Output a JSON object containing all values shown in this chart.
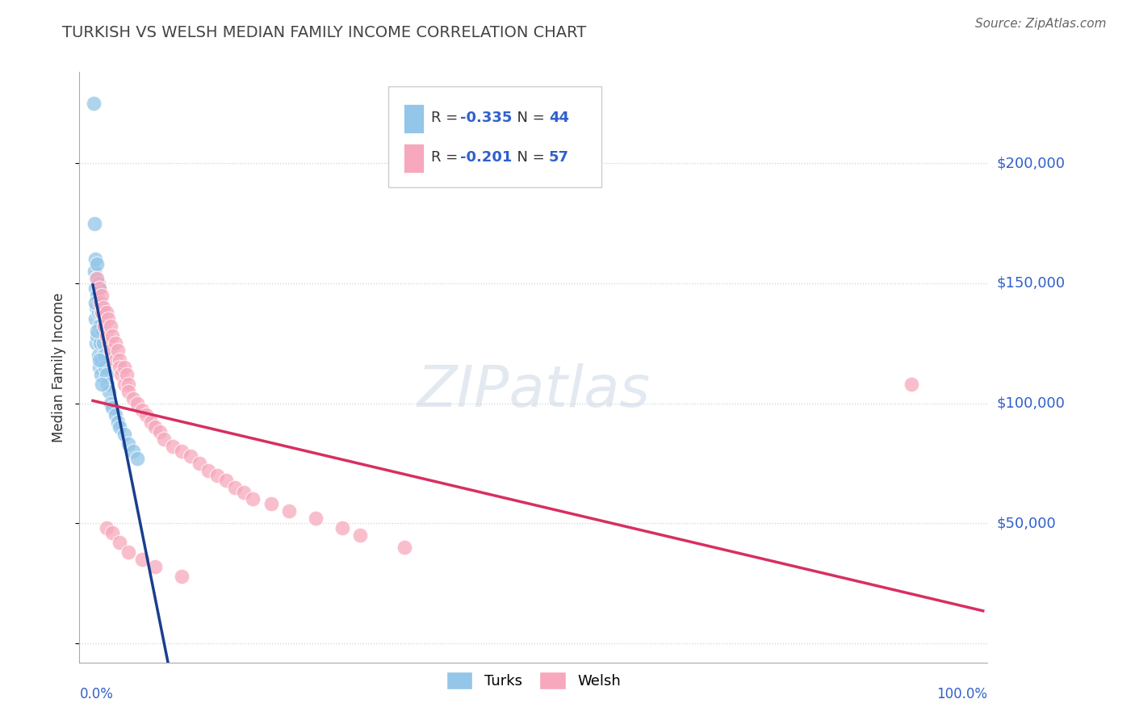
{
  "title": "TURKISH VS WELSH MEDIAN FAMILY INCOME CORRELATION CHART",
  "source": "Source: ZipAtlas.com",
  "ylabel": "Median Family Income",
  "turks_R": "-0.335",
  "turks_N": "44",
  "welsh_R": "-0.201",
  "welsh_N": "57",
  "blue_scatter_color": "#93c6e8",
  "pink_scatter_color": "#f7a8bc",
  "blue_line_color": "#1a3e8f",
  "pink_line_color": "#d63060",
  "dashed_line_color": "#b0bfd0",
  "axis_label_color": "#3060cc",
  "title_color": "#444444",
  "grid_color": "#c8d4e0",
  "watermark_color": "#ccd8e4",
  "turks_x": [
    0.001,
    0.002,
    0.002,
    0.003,
    0.003,
    0.003,
    0.004,
    0.004,
    0.004,
    0.005,
    0.005,
    0.005,
    0.006,
    0.006,
    0.006,
    0.007,
    0.007,
    0.007,
    0.008,
    0.008,
    0.009,
    0.009,
    0.01,
    0.01,
    0.011,
    0.012,
    0.013,
    0.014,
    0.015,
    0.016,
    0.018,
    0.02,
    0.022,
    0.025,
    0.028,
    0.03,
    0.035,
    0.04,
    0.045,
    0.05,
    0.003,
    0.005,
    0.007,
    0.01
  ],
  "turks_y": [
    225000,
    175000,
    155000,
    160000,
    148000,
    135000,
    152000,
    140000,
    125000,
    158000,
    145000,
    128000,
    150000,
    138000,
    120000,
    148000,
    132000,
    115000,
    142000,
    125000,
    138000,
    112000,
    140000,
    118000,
    130000,
    125000,
    120000,
    115000,
    112000,
    108000,
    105000,
    100000,
    98000,
    95000,
    92000,
    90000,
    87000,
    83000,
    80000,
    77000,
    142000,
    130000,
    118000,
    108000
  ],
  "welsh_x": [
    0.005,
    0.007,
    0.008,
    0.01,
    0.01,
    0.012,
    0.013,
    0.015,
    0.015,
    0.017,
    0.018,
    0.02,
    0.02,
    0.022,
    0.025,
    0.025,
    0.028,
    0.03,
    0.03,
    0.032,
    0.035,
    0.035,
    0.038,
    0.04,
    0.04,
    0.045,
    0.05,
    0.055,
    0.06,
    0.065,
    0.07,
    0.075,
    0.08,
    0.09,
    0.1,
    0.11,
    0.12,
    0.13,
    0.14,
    0.15,
    0.16,
    0.17,
    0.18,
    0.2,
    0.22,
    0.25,
    0.28,
    0.3,
    0.35,
    0.92,
    0.015,
    0.022,
    0.03,
    0.04,
    0.055,
    0.07,
    0.1
  ],
  "welsh_y": [
    152000,
    148000,
    142000,
    145000,
    138000,
    140000,
    132000,
    138000,
    128000,
    135000,
    125000,
    132000,
    122000,
    128000,
    125000,
    118000,
    122000,
    118000,
    115000,
    112000,
    115000,
    108000,
    112000,
    108000,
    105000,
    102000,
    100000,
    97000,
    95000,
    92000,
    90000,
    88000,
    85000,
    82000,
    80000,
    78000,
    75000,
    72000,
    70000,
    68000,
    65000,
    63000,
    60000,
    58000,
    55000,
    52000,
    48000,
    45000,
    40000,
    108000,
    48000,
    46000,
    42000,
    38000,
    35000,
    32000,
    28000
  ],
  "xlim": [
    -0.015,
    1.005
  ],
  "ylim": [
    -8000,
    238000
  ],
  "ytick_vals": [
    0,
    50000,
    100000,
    150000,
    200000
  ],
  "ytick_labels": [
    "",
    "$50,000",
    "$100,000",
    "$150,000",
    "$200,000"
  ]
}
